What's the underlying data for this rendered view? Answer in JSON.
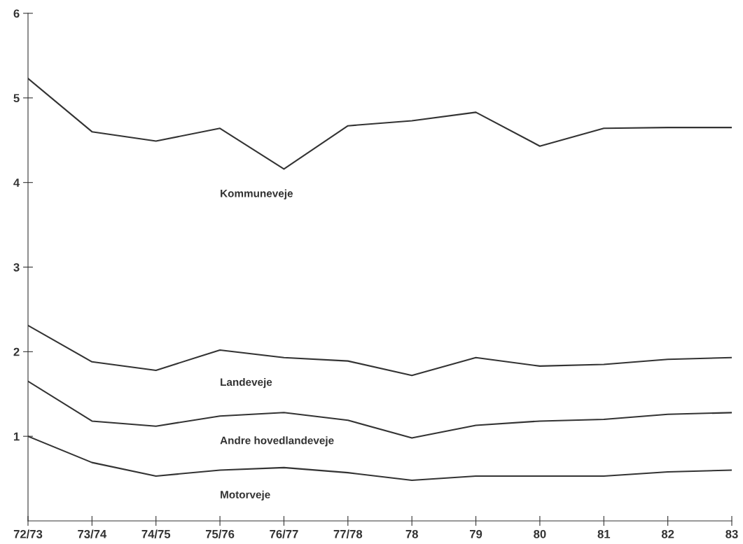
{
  "chart_data": {
    "type": "line",
    "categories": [
      "72/73",
      "73/74",
      "74/75",
      "75/76",
      "76/77",
      "77/78",
      "78",
      "79",
      "80",
      "81",
      "82",
      "83"
    ],
    "series": [
      {
        "name": "Kommuneveje",
        "color": "#333333",
        "values": [
          5.23,
          4.6,
          4.49,
          4.64,
          4.16,
          4.67,
          4.73,
          4.83,
          4.43,
          4.64,
          4.65,
          4.65
        ]
      },
      {
        "name": "Landeveje",
        "color": "#333333",
        "values": [
          2.31,
          1.88,
          1.78,
          2.02,
          1.93,
          1.89,
          1.72,
          1.93,
          1.83,
          1.85,
          1.91,
          1.93
        ]
      },
      {
        "name": "Andre hovedlandeveje",
        "color": "#333333",
        "values": [
          1.65,
          1.18,
          1.12,
          1.24,
          1.28,
          1.19,
          0.98,
          1.13,
          1.18,
          1.2,
          1.26,
          1.28
        ]
      },
      {
        "name": "Motorveje",
        "color": "#333333",
        "values": [
          1.0,
          0.69,
          0.53,
          0.6,
          0.63,
          0.57,
          0.48,
          0.53,
          0.53,
          0.53,
          0.58,
          0.6
        ]
      }
    ],
    "ylim": [
      0,
      6
    ],
    "yticks": [
      1,
      2,
      3,
      4,
      5,
      6
    ],
    "grid": false,
    "legend": false,
    "marker": "none",
    "line_style": "solid"
  }
}
